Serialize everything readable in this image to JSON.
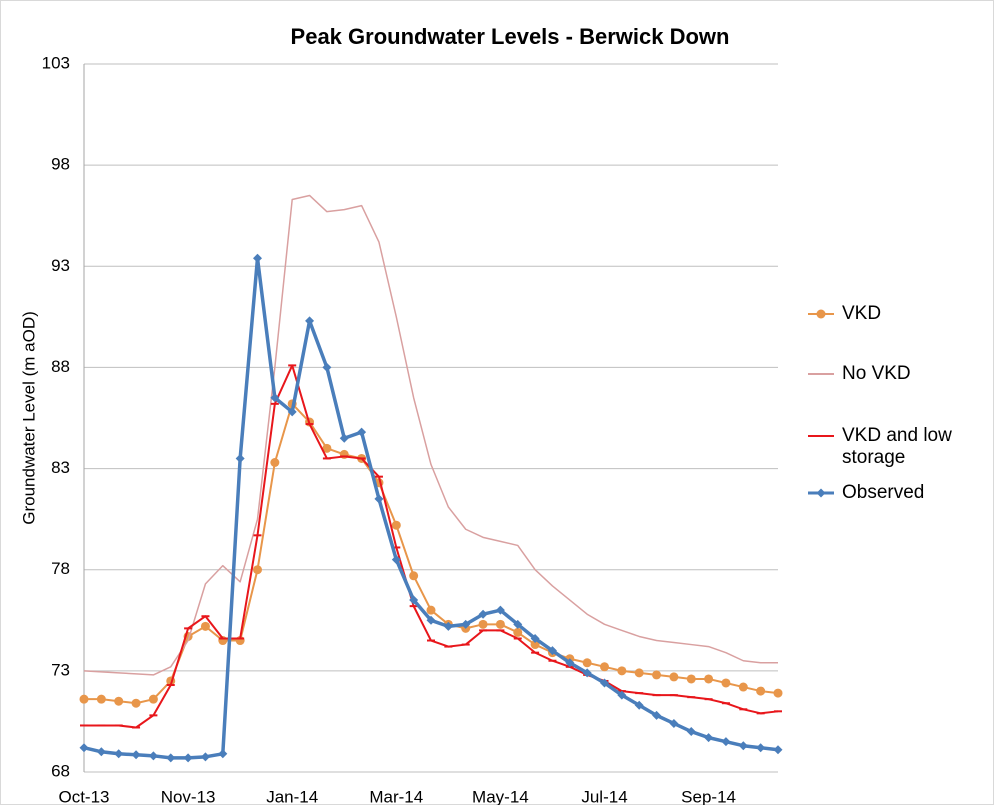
{
  "chart_data": {
    "type": "line",
    "title": "Peak Groundwater Levels - Berwick Down",
    "ylabel": "Groundwater Level (m aOD)",
    "categories": [
      "Oct-13",
      null,
      null,
      null,
      null,
      null,
      "Nov-13",
      null,
      null,
      null,
      null,
      null,
      "Jan-14",
      null,
      null,
      null,
      null,
      null,
      "Mar-14",
      null,
      null,
      null,
      null,
      null,
      "May-14",
      null,
      null,
      null,
      null,
      null,
      "Jul-14",
      null,
      null,
      null,
      null,
      null,
      "Sep-14",
      null,
      null,
      null,
      null
    ],
    "ylim": [
      68,
      103
    ],
    "yticks": [
      68,
      73,
      78,
      83,
      88,
      93,
      98,
      103
    ],
    "grid": true,
    "legend": "right",
    "series": [
      {
        "name": "VKD",
        "color": "#e8964a",
        "marker": "circle",
        "values": [
          71.6,
          71.6,
          71.5,
          71.4,
          71.6,
          72.5,
          74.7,
          75.2,
          74.5,
          74.5,
          78.0,
          83.3,
          86.2,
          85.3,
          84.0,
          83.7,
          83.5,
          82.3,
          80.2,
          77.7,
          76.0,
          75.3,
          75.1,
          75.3,
          75.3,
          74.9,
          74.3,
          73.9,
          73.6,
          73.4,
          73.2,
          73.0,
          72.9,
          72.8,
          72.7,
          72.6,
          72.6,
          72.4,
          72.2,
          72.0,
          71.9
        ]
      },
      {
        "name": "No VKD",
        "color": "#d9a0a0",
        "marker": "none",
        "values": [
          73.0,
          72.95,
          72.9,
          72.85,
          72.8,
          73.2,
          74.5,
          77.3,
          78.2,
          77.4,
          80.5,
          88.0,
          96.3,
          96.5,
          95.7,
          95.8,
          96.0,
          94.2,
          90.5,
          86.5,
          83.2,
          81.1,
          80.0,
          79.6,
          79.4,
          79.2,
          78.0,
          77.2,
          76.5,
          75.8,
          75.3,
          75.0,
          74.7,
          74.5,
          74.4,
          74.3,
          74.2,
          73.9,
          73.5,
          73.4,
          73.4
        ]
      },
      {
        "name": "VKD and low storage",
        "color": "#e8161b",
        "marker": "dash",
        "values": [
          70.3,
          70.3,
          70.3,
          70.2,
          70.8,
          72.3,
          75.1,
          75.7,
          74.6,
          74.6,
          79.7,
          86.2,
          88.1,
          85.2,
          83.5,
          83.6,
          83.5,
          82.6,
          79.1,
          76.2,
          74.5,
          74.2,
          74.3,
          75.0,
          75.0,
          74.6,
          73.9,
          73.5,
          73.2,
          72.8,
          72.5,
          72.0,
          71.9,
          71.8,
          71.8,
          71.7,
          71.6,
          71.4,
          71.1,
          70.9,
          71.0
        ]
      },
      {
        "name": "Observed",
        "color": "#4a7ebb",
        "marker": "diamond",
        "values": [
          69.2,
          69.0,
          68.9,
          68.85,
          68.8,
          68.7,
          68.7,
          68.75,
          68.9,
          83.5,
          93.4,
          86.5,
          85.8,
          90.3,
          88.0,
          84.5,
          84.8,
          81.5,
          78.5,
          76.5,
          75.5,
          75.2,
          75.3,
          75.8,
          76.0,
          75.3,
          74.6,
          74.0,
          73.4,
          72.9,
          72.4,
          71.8,
          71.3,
          70.8,
          70.4,
          70.0,
          69.7,
          69.5,
          69.3,
          69.2,
          69.1
        ]
      }
    ]
  }
}
